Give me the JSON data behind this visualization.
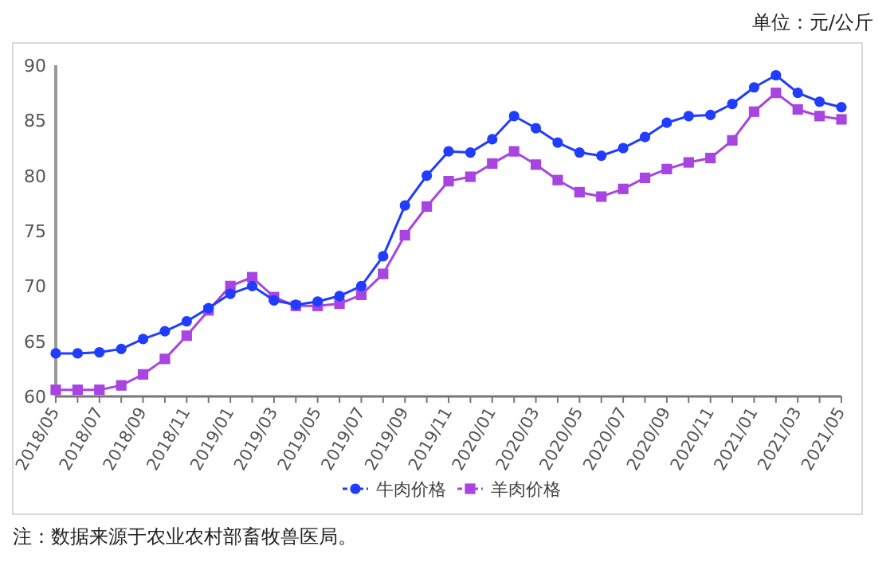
{
  "chart_data": {
    "type": "line",
    "categories": [
      "2018/05",
      null,
      "2018/07",
      null,
      "2018/09",
      null,
      "2018/11",
      null,
      "2019/01",
      null,
      "2019/03",
      null,
      "2019/05",
      null,
      "2019/07",
      null,
      "2019/09",
      null,
      "2019/11",
      null,
      "2020/01",
      null,
      "2020/03",
      null,
      "2020/05",
      null,
      "2020/07",
      null,
      "2020/09",
      null,
      "2020/11",
      null,
      "2021/01",
      null,
      "2021/03",
      null,
      "2021/05"
    ],
    "series": [
      {
        "name": "牛肉价格",
        "color": "#1f3cff",
        "marker": "circle",
        "values": [
          63.9,
          63.9,
          64.0,
          64.3,
          65.2,
          65.9,
          66.8,
          68.0,
          69.3,
          70.0,
          68.7,
          68.3,
          68.6,
          69.1,
          70.0,
          72.7,
          77.3,
          80.0,
          82.2,
          82.1,
          83.3,
          85.4,
          84.3,
          83.0,
          82.1,
          81.8,
          82.5,
          83.5,
          84.8,
          85.4,
          85.5,
          86.5,
          88.0,
          89.1,
          87.5,
          86.7,
          86.2
        ]
      },
      {
        "name": "羊肉价格",
        "color": "#a845e0",
        "marker": "square",
        "values": [
          60.6,
          60.6,
          60.6,
          61.0,
          62.0,
          63.4,
          65.5,
          67.8,
          70.0,
          70.8,
          69.0,
          68.2,
          68.2,
          68.4,
          69.2,
          71.1,
          74.6,
          77.2,
          79.5,
          79.9,
          81.1,
          82.2,
          81.0,
          79.6,
          78.5,
          78.1,
          78.8,
          79.8,
          80.6,
          81.2,
          81.6,
          83.2,
          85.8,
          87.5,
          86.0,
          85.4,
          85.1
        ]
      }
    ],
    "ylim": [
      60,
      90
    ],
    "yticks": [
      60,
      65,
      70,
      75,
      80,
      85,
      90
    ],
    "grid": false,
    "legend": "bottom",
    "annotations": [
      "单位：元/公斤",
      "注：数据来源于农业农村部畜牧兽医局。"
    ]
  }
}
